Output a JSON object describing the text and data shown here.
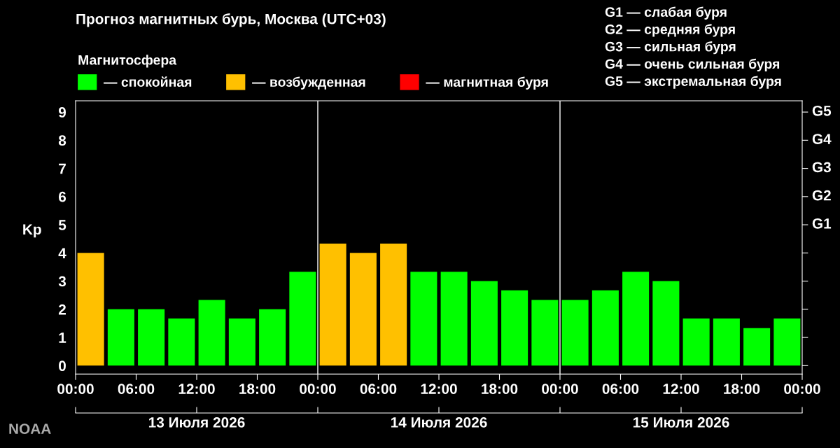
{
  "chart_data": {
    "type": "bar",
    "title": "Прогноз магнитных бурь, Москва (UTC+03)",
    "ylabel": "Kp",
    "legend_title": "Магнитосфера",
    "legend": "top left",
    "grid": false,
    "x": [
      "2026-07-13T01:30",
      "2026-07-13T04:30",
      "2026-07-13T07:30",
      "2026-07-13T10:30",
      "2026-07-13T13:30",
      "2026-07-13T16:30",
      "2026-07-13T19:30",
      "2026-07-13T22:30",
      "2026-07-14T01:30",
      "2026-07-14T04:30",
      "2026-07-14T07:30",
      "2026-07-14T10:30",
      "2026-07-14T13:30",
      "2026-07-14T16:30",
      "2026-07-14T19:30",
      "2026-07-14T22:30",
      "2026-07-15T01:30",
      "2026-07-15T04:30",
      "2026-07-15T07:30",
      "2026-07-15T10:30",
      "2026-07-15T13:30",
      "2026-07-15T16:30",
      "2026-07-15T19:30",
      "2026-07-15T22:30"
    ],
    "series": [
      {
        "name": "— спокойная",
        "color": "#00ff00",
        "values": [
          null,
          2.0,
          2.0,
          1.67,
          2.33,
          1.67,
          2.0,
          3.33,
          null,
          null,
          null,
          3.33,
          3.33,
          3.0,
          2.67,
          2.33,
          2.33,
          2.67,
          3.33,
          3.0,
          1.67,
          1.67,
          1.33,
          1.67
        ]
      },
      {
        "name": "— возбужденная",
        "color": "#ffc000",
        "values": [
          4.0,
          null,
          null,
          null,
          null,
          null,
          null,
          null,
          4.33,
          4.0,
          4.33,
          null,
          null,
          null,
          null,
          null,
          null,
          null,
          null,
          null,
          null,
          null,
          null,
          null
        ]
      },
      {
        "name": "— магнитная буря",
        "color": "#ff0000",
        "values": [
          null,
          null,
          null,
          null,
          null,
          null,
          null,
          null,
          null,
          null,
          null,
          null,
          null,
          null,
          null,
          null,
          null,
          null,
          null,
          null,
          null,
          null,
          null,
          null
        ]
      }
    ],
    "xlim": [
      "2026-07-13T00:00",
      "2026-07-16T00:00"
    ],
    "xticks": [
      {
        "value": "2026-07-13T00:00",
        "label": "00:00"
      },
      {
        "value": "2026-07-13T06:00",
        "label": "06:00"
      },
      {
        "value": "2026-07-13T12:00",
        "label": "12:00"
      },
      {
        "value": "2026-07-13T18:00",
        "label": "18:00"
      },
      {
        "value": "2026-07-14T00:00",
        "label": "00:00"
      },
      {
        "value": "2026-07-14T06:00",
        "label": "06:00"
      },
      {
        "value": "2026-07-14T12:00",
        "label": "12:00"
      },
      {
        "value": "2026-07-14T18:00",
        "label": "18:00"
      },
      {
        "value": "2026-07-15T00:00",
        "label": "00:00"
      },
      {
        "value": "2026-07-15T06:00",
        "label": "06:00"
      },
      {
        "value": "2026-07-15T12:00",
        "label": "12:00"
      },
      {
        "value": "2026-07-15T18:00",
        "label": "18:00"
      },
      {
        "value": "2026-07-16T00:00",
        "label": "00:00"
      }
    ],
    "x2lim": [
      "2026-07-13T00:00",
      "2026-07-16T00:00"
    ],
    "x2ticks": [
      {
        "value": "2026-07-13T00:00",
        "label": null
      },
      {
        "value": "2026-07-13T12:00",
        "label": "13 Июля 2026"
      },
      {
        "value": "2026-07-14T00:00",
        "label": null
      },
      {
        "value": "2026-07-14T12:00",
        "label": "14 Июля 2026"
      },
      {
        "value": "2026-07-15T00:00",
        "label": null
      },
      {
        "value": "2026-07-15T12:00",
        "label": "15 Июля 2026"
      },
      {
        "value": "2026-07-16T00:00",
        "label": null
      }
    ],
    "ylim": [
      -0.3,
      9.4
    ],
    "yticks": [
      0,
      1,
      2,
      3,
      4,
      5,
      6,
      7,
      8,
      9
    ],
    "ref_lines": [
      {
        "axis": "x",
        "value": "2026-07-14T00:00",
        "color": "#ffffff"
      },
      {
        "axis": "x",
        "value": "2026-07-15T00:00",
        "color": "#ffffff"
      }
    ],
    "annotations": [
      "G1 — слабая буря\nG2 — средняя буря\nG3 — сильная буря\nG4 — очень сильная буря\nG5 — экстремальная буря",
      "NOAA",
      "G1",
      "G2",
      "G3",
      "G4",
      "G5"
    ]
  }
}
